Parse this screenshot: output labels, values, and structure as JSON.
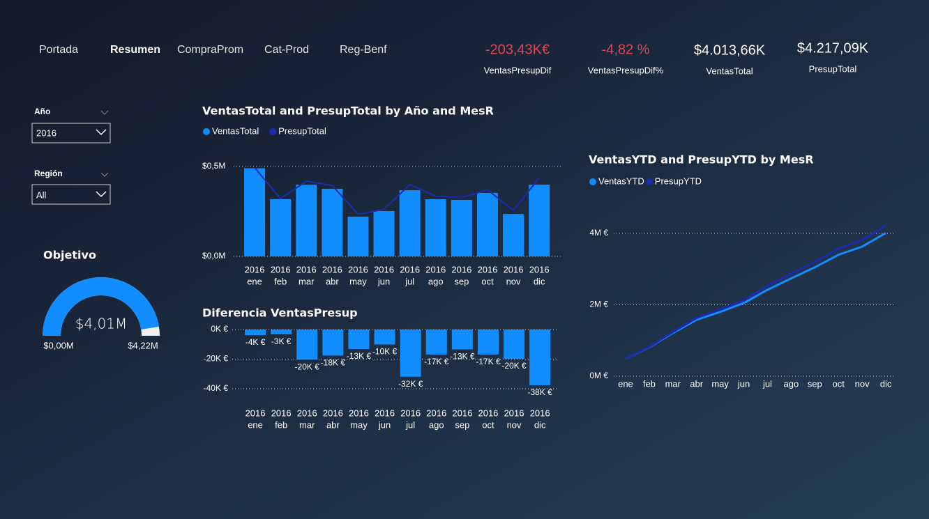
{
  "nav": [
    "Portada",
    "Resumen",
    "CompraProm",
    "Cat-Prod",
    "Reg-Benf"
  ],
  "kpis": [
    {
      "value": "-203,43K€",
      "label": "VentasPresupDif",
      "color": "#e04456"
    },
    {
      "value": "-4,82 %",
      "label": "VentasPresupDif%",
      "color": "#e04456"
    },
    {
      "value": "$4.013,66K",
      "label": "VentasTotal",
      "color": "#ffffff"
    },
    {
      "value": "$4.217,09K",
      "label": "PresupTotal",
      "color": "#ffffff"
    }
  ],
  "slicers": [
    {
      "label": "Año",
      "value": "2016"
    },
    {
      "label": "Región",
      "value": "All"
    }
  ],
  "chart_data": [
    {
      "type": "gauge",
      "title": "Objetivo",
      "value": 4.01,
      "value_label": "$4,01M",
      "min": {
        "value": 0,
        "label": "$0,00M"
      },
      "max": {
        "value": 4.22,
        "label": "$4,22M"
      },
      "color": "#118dff",
      "track_color": "#f0f0f0"
    },
    {
      "type": "combo",
      "title": "VentasTotal and PresupTotal by Año and MesR",
      "categories": [
        [
          "2016",
          "ene"
        ],
        [
          "2016",
          "feb"
        ],
        [
          "2016",
          "mar"
        ],
        [
          "2016",
          "abr"
        ],
        [
          "2016",
          "may"
        ],
        [
          "2016",
          "jun"
        ],
        [
          "2016",
          "jul"
        ],
        [
          "2016",
          "ago"
        ],
        [
          "2016",
          "sep"
        ],
        [
          "2016",
          "oct"
        ],
        [
          "2016",
          "nov"
        ],
        [
          "2016",
          "dic"
        ]
      ],
      "series": [
        {
          "name": "VentasTotal",
          "mark": "bar",
          "color": "#118dff",
          "values": [
            0.49,
            0.318,
            0.399,
            0.376,
            0.221,
            0.252,
            0.368,
            0.318,
            0.314,
            0.353,
            0.236,
            0.399
          ]
        },
        {
          "name": "PresupTotal",
          "mark": "line",
          "color": "#1a2bb0",
          "values": [
            0.494,
            0.321,
            0.419,
            0.394,
            0.234,
            0.262,
            0.4,
            0.335,
            0.327,
            0.37,
            0.256,
            0.437
          ]
        }
      ],
      "ylim": [
        0,
        0.5
      ],
      "yticks": [
        {
          "value": 0,
          "label": "$0,0M"
        },
        {
          "value": 0.5,
          "label": "$0,5M"
        }
      ],
      "grid": true
    },
    {
      "type": "bar",
      "title": "Diferencia VentasPresup",
      "categories": [
        [
          "2016",
          "ene"
        ],
        [
          "2016",
          "feb"
        ],
        [
          "2016",
          "mar"
        ],
        [
          "2016",
          "abr"
        ],
        [
          "2016",
          "may"
        ],
        [
          "2016",
          "jun"
        ],
        [
          "2016",
          "jul"
        ],
        [
          "2016",
          "ago"
        ],
        [
          "2016",
          "sep"
        ],
        [
          "2016",
          "oct"
        ],
        [
          "2016",
          "nov"
        ],
        [
          "2016",
          "dic"
        ]
      ],
      "values": [
        -3.8,
        -3.2,
        -20.4,
        -17.6,
        -13.2,
        -10.1,
        -31.9,
        -16.9,
        -13.4,
        -16.9,
        -19.8,
        -37.6
      ],
      "value_labels": [
        "-4K €",
        "-3K €",
        "-20K €",
        "-18K €",
        "-13K €",
        "-10K €",
        "-32K €",
        "-17K €",
        "-13K €",
        "-17K €",
        "-20K €",
        "-38K €"
      ],
      "color": "#118dff",
      "ylim": [
        -40,
        0
      ],
      "yticks": [
        {
          "value": 0,
          "label": "0K €"
        },
        {
          "value": -20,
          "label": "-20K €"
        },
        {
          "value": -40,
          "label": "-40K €"
        }
      ],
      "grid": true
    },
    {
      "type": "line",
      "title": "VentasYTD and PresupYTD by MesR",
      "categories": [
        "ene",
        "feb",
        "mar",
        "abr",
        "may",
        "jun",
        "jul",
        "ago",
        "sep",
        "oct",
        "nov",
        "dic"
      ],
      "series": [
        {
          "name": "VentasYTD",
          "color": "#118dff",
          "values": [
            0.49,
            0.81,
            1.21,
            1.58,
            1.8,
            2.05,
            2.42,
            2.74,
            3.05,
            3.4,
            3.63,
            4.01
          ]
        },
        {
          "name": "PresupYTD",
          "color": "#1a2bb0",
          "values": [
            0.49,
            0.82,
            1.24,
            1.63,
            1.87,
            2.13,
            2.53,
            2.87,
            3.2,
            3.57,
            3.82,
            4.22
          ]
        }
      ],
      "ylim": [
        0,
        4.5
      ],
      "yticks": [
        {
          "value": 0,
          "label": "0M €"
        },
        {
          "value": 2,
          "label": "2M €"
        },
        {
          "value": 4,
          "label": "4M €"
        }
      ],
      "grid": true
    }
  ]
}
